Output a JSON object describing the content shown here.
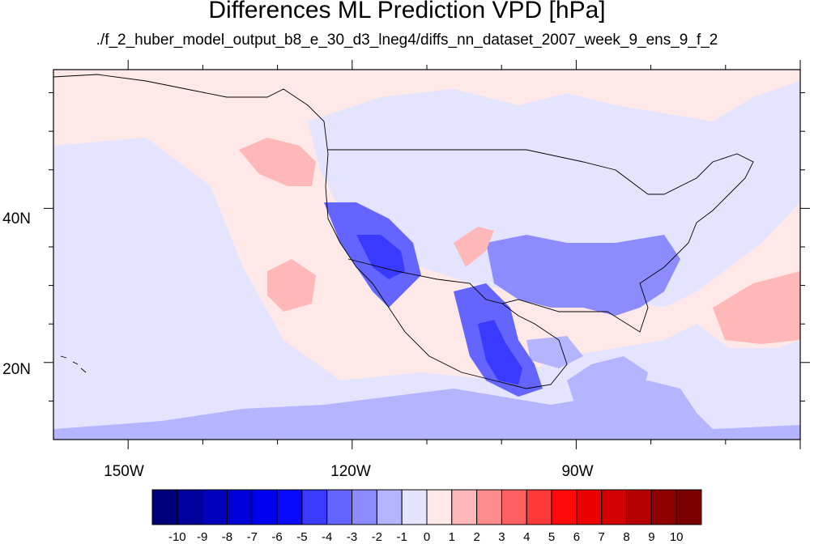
{
  "title": "Differences ML Prediction VPD [hPa]",
  "subtitle": "./f_2_huber_model_output_b8_e_30_d3_lneg4/diffs_nn_dataset_2007_week_9_ens_9_f_2",
  "map": {
    "projection": "equirectangular",
    "lon_range": [
      -160,
      -60
    ],
    "lat_range": [
      10,
      58
    ],
    "x_tick_labels": [
      "150W",
      "120W",
      "90W"
    ],
    "y_tick_labels": [
      "40N",
      "20N"
    ],
    "coastlines": true,
    "state_boundaries": true,
    "colormap": "blue-white-red diverging"
  },
  "colorbar": {
    "labels": [
      "-10",
      "-9",
      "-8",
      "-7",
      "-6",
      "-5",
      "-4",
      "-3",
      "-2",
      "-1",
      "0",
      "1",
      "2",
      "3",
      "4",
      "5",
      "6",
      "7",
      "8",
      "9",
      "10"
    ],
    "colors": [
      "#00007a",
      "#00009c",
      "#0000bc",
      "#0000d8",
      "#0000f0",
      "#0a0aff",
      "#3a3aff",
      "#6464ff",
      "#8c8cff",
      "#b4b4ff",
      "#e4e4ff",
      "#ffe8e8",
      "#ffb8b8",
      "#ff8c8c",
      "#ff6060",
      "#ff3838",
      "#ff0a0a",
      "#ec0000",
      "#d20000",
      "#b40000",
      "#900000",
      "#7a0000"
    ]
  },
  "regions": [
    {
      "name": "background",
      "color": "#ffe8e8"
    },
    {
      "name": "canada-weak-neg",
      "color": "#e4e4ff"
    },
    {
      "name": "pacific-neg",
      "color": "#e4e4ff"
    },
    {
      "name": "tropical-neg",
      "color": "#b4b4ff"
    },
    {
      "name": "mexico-neg",
      "color": "#6464ff"
    },
    {
      "name": "southwest-neg",
      "color": "#3a3aff"
    },
    {
      "name": "southeast-neg",
      "color": "#8c8cff"
    },
    {
      "name": "atlantic-pos",
      "color": "#ffb8b8"
    },
    {
      "name": "pacific-nw-pos",
      "color": "#ffb8b8"
    }
  ]
}
